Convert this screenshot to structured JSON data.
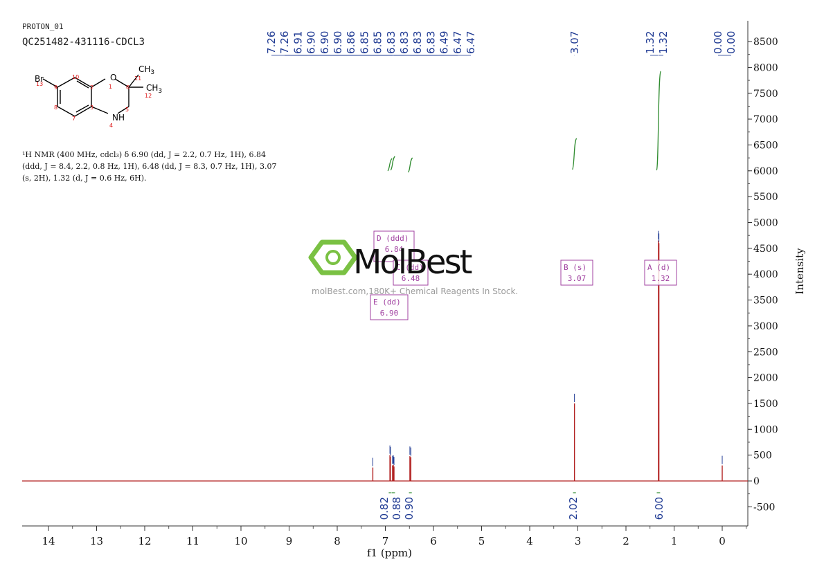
{
  "header": {
    "sample_id": "PROTON_01",
    "sample_name": "QC251482-431116-CDCL3"
  },
  "description": {
    "line1": "¹H NMR (400 MHz, cdcl₃) δ 6.90 (dd, J = 2.2, 0.7 Hz, 1H), 6.84",
    "line2": "(ddd, J = 8.4, 2.2, 0.8 Hz, 1H), 6.48 (dd, J = 8.3, 0.7 Hz, 1H), 3.07",
    "line3": "(s, 2H), 1.32 (d, J = 0.6 Hz, 6H)."
  },
  "molecule": {
    "atoms": [
      "Br",
      "O",
      "CH3",
      "CH3",
      "NH"
    ],
    "numbers": [
      "13",
      "9",
      "10",
      "2",
      "1",
      "11",
      "6",
      "12",
      "8",
      "3",
      "7",
      "5",
      "4"
    ]
  },
  "watermark": {
    "brand": "MolBest",
    "tagline": "molBest.com,180K+ Chemical Reagents In Stock."
  },
  "colors": {
    "spectrum": "#b22222",
    "peak_label": "#1f3a93",
    "integral": "#2e8b2e",
    "multiplet_box": "#a040a0",
    "axis": "#333333",
    "molecule_number": "#d11"
  },
  "chart_data": {
    "type": "line",
    "xlabel": "f1 (ppm)",
    "ylabel": "Intensity",
    "xlim": [
      14.4,
      -0.6
    ],
    "ylim": [
      -700,
      8800
    ],
    "x_reversed": true,
    "x_ticks": [
      14,
      13,
      12,
      11,
      10,
      9,
      8,
      7,
      6,
      5,
      4,
      3,
      2,
      1,
      0
    ],
    "y_ticks": [
      -500,
      0,
      500,
      1000,
      1500,
      2000,
      2500,
      3000,
      3500,
      4000,
      4500,
      5000,
      5500,
      6000,
      6500,
      7000,
      7500,
      8000,
      8500
    ],
    "peaks": [
      {
        "ppm": 7.26,
        "height": 260
      },
      {
        "ppm": 6.905,
        "height": 500
      },
      {
        "ppm": 6.895,
        "height": 470
      },
      {
        "ppm": 6.85,
        "height": 300
      },
      {
        "ppm": 6.835,
        "height": 310
      },
      {
        "ppm": 6.82,
        "height": 280
      },
      {
        "ppm": 6.49,
        "height": 480
      },
      {
        "ppm": 6.47,
        "height": 460
      },
      {
        "ppm": 3.07,
        "height": 1500
      },
      {
        "ppm": 1.325,
        "height": 4650
      },
      {
        "ppm": 1.315,
        "height": 4600
      },
      {
        "ppm": 0.0,
        "height": 300
      }
    ],
    "peak_labels_group1": [
      "7.26",
      "7.26",
      "6.91",
      "6.90",
      "6.90",
      "6.90",
      "6.86",
      "6.85",
      "6.85",
      "6.83",
      "6.83",
      "6.83",
      "6.83",
      "6.49",
      "6.47",
      "6.47"
    ],
    "peak_labels_group2": [
      "3.07"
    ],
    "peak_labels_group3": [
      "1.32",
      "1.32"
    ],
    "peak_labels_group4": [
      "0.00",
      "0.00"
    ],
    "integrals": [
      {
        "from": 6.93,
        "to": 6.88,
        "value": "0.82"
      },
      {
        "from": 6.87,
        "to": 6.8,
        "value": "0.88"
      },
      {
        "from": 6.51,
        "to": 6.45,
        "value": "0.90"
      },
      {
        "from": 3.1,
        "to": 3.04,
        "value": "2.02"
      },
      {
        "from": 1.36,
        "to": 1.29,
        "value": "6.00"
      }
    ],
    "multiplets": [
      {
        "label": "D (ddd)",
        "value": "6.84",
        "center": 6.84
      },
      {
        "label": "C (dd)",
        "value": "6.48",
        "center": 6.48
      },
      {
        "label": "E (dd)",
        "value": "6.90",
        "center": 6.9
      },
      {
        "label": "B (s)",
        "value": "3.07",
        "center": 3.07
      },
      {
        "label": "A (d)",
        "value": "1.32",
        "center": 1.32
      }
    ]
  }
}
